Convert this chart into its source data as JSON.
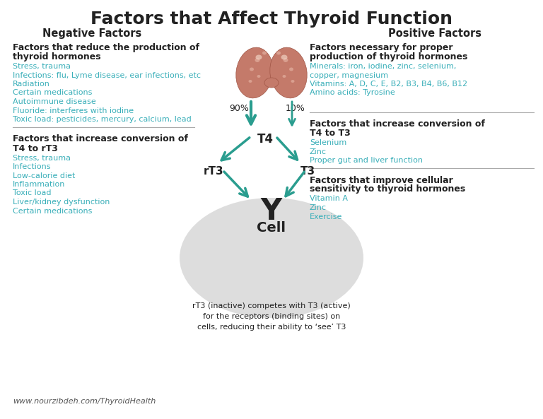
{
  "title": "Factors that Affect Thyroid Function",
  "bg_color": "#ffffff",
  "title_fontsize": 18,
  "left_header": "Negative Factors",
  "right_header": "Positive Factors",
  "neg_section1_title": "Factors that reduce the production of\nthyroid hormones",
  "neg_section1_items": [
    "Stress, trauma",
    "Infections: flu, Lyme disease, ear infections, etc",
    "Radiation",
    "Certain medications",
    "Autoimmune disease",
    "Fluoride: interferes with iodine",
    "Toxic load: pesticides, mercury, calcium, lead"
  ],
  "neg_section2_title": "Factors that increase conversion of\nT4 to rT3",
  "neg_section2_items": [
    "Stress, trauma",
    "Infections",
    "Low-calorie diet",
    "Inflammation",
    "Toxic load",
    "Liver/kidney dysfunction",
    "Certain medications"
  ],
  "pos_section1_title": "Factors necessary for proper\nproduction of thyroid hormones",
  "pos_section1_items": [
    "Minerals: iron, iodine, zinc, selenium,",
    "copper, magnesium",
    "Vitamins: A, D, C, E, B2, B3, B4, B6, B12",
    "Amino acids: Tyrosine"
  ],
  "pos_section2_title": "Factors that increase conversion of\nT4 to T3",
  "pos_section2_items": [
    "Selenium",
    "Zinc",
    "Proper gut and liver function"
  ],
  "pos_section3_title": "Factors that improve cellular\nsensitivity to thyroid hormones",
  "pos_section3_items": [
    "Vitamin A",
    "Zinc",
    "Exercise"
  ],
  "teal_color": "#3aafb9",
  "black_color": "#222222",
  "arrow_color": "#2a9d8f",
  "footnote": "www.nourzibdeh.com/ThyroidHealth",
  "cell_note": "rT3 (inactive) competes with T3 (active)\nfor the receptors (binding sites) on\ncells, reducing their ability to ‘see’ T3",
  "pct_90": "90%",
  "pct_10": "10%",
  "label_T4": "T4",
  "label_rT3": "rT3",
  "label_T3": "T3",
  "label_Cell": "Cell",
  "label_Y": "Y"
}
